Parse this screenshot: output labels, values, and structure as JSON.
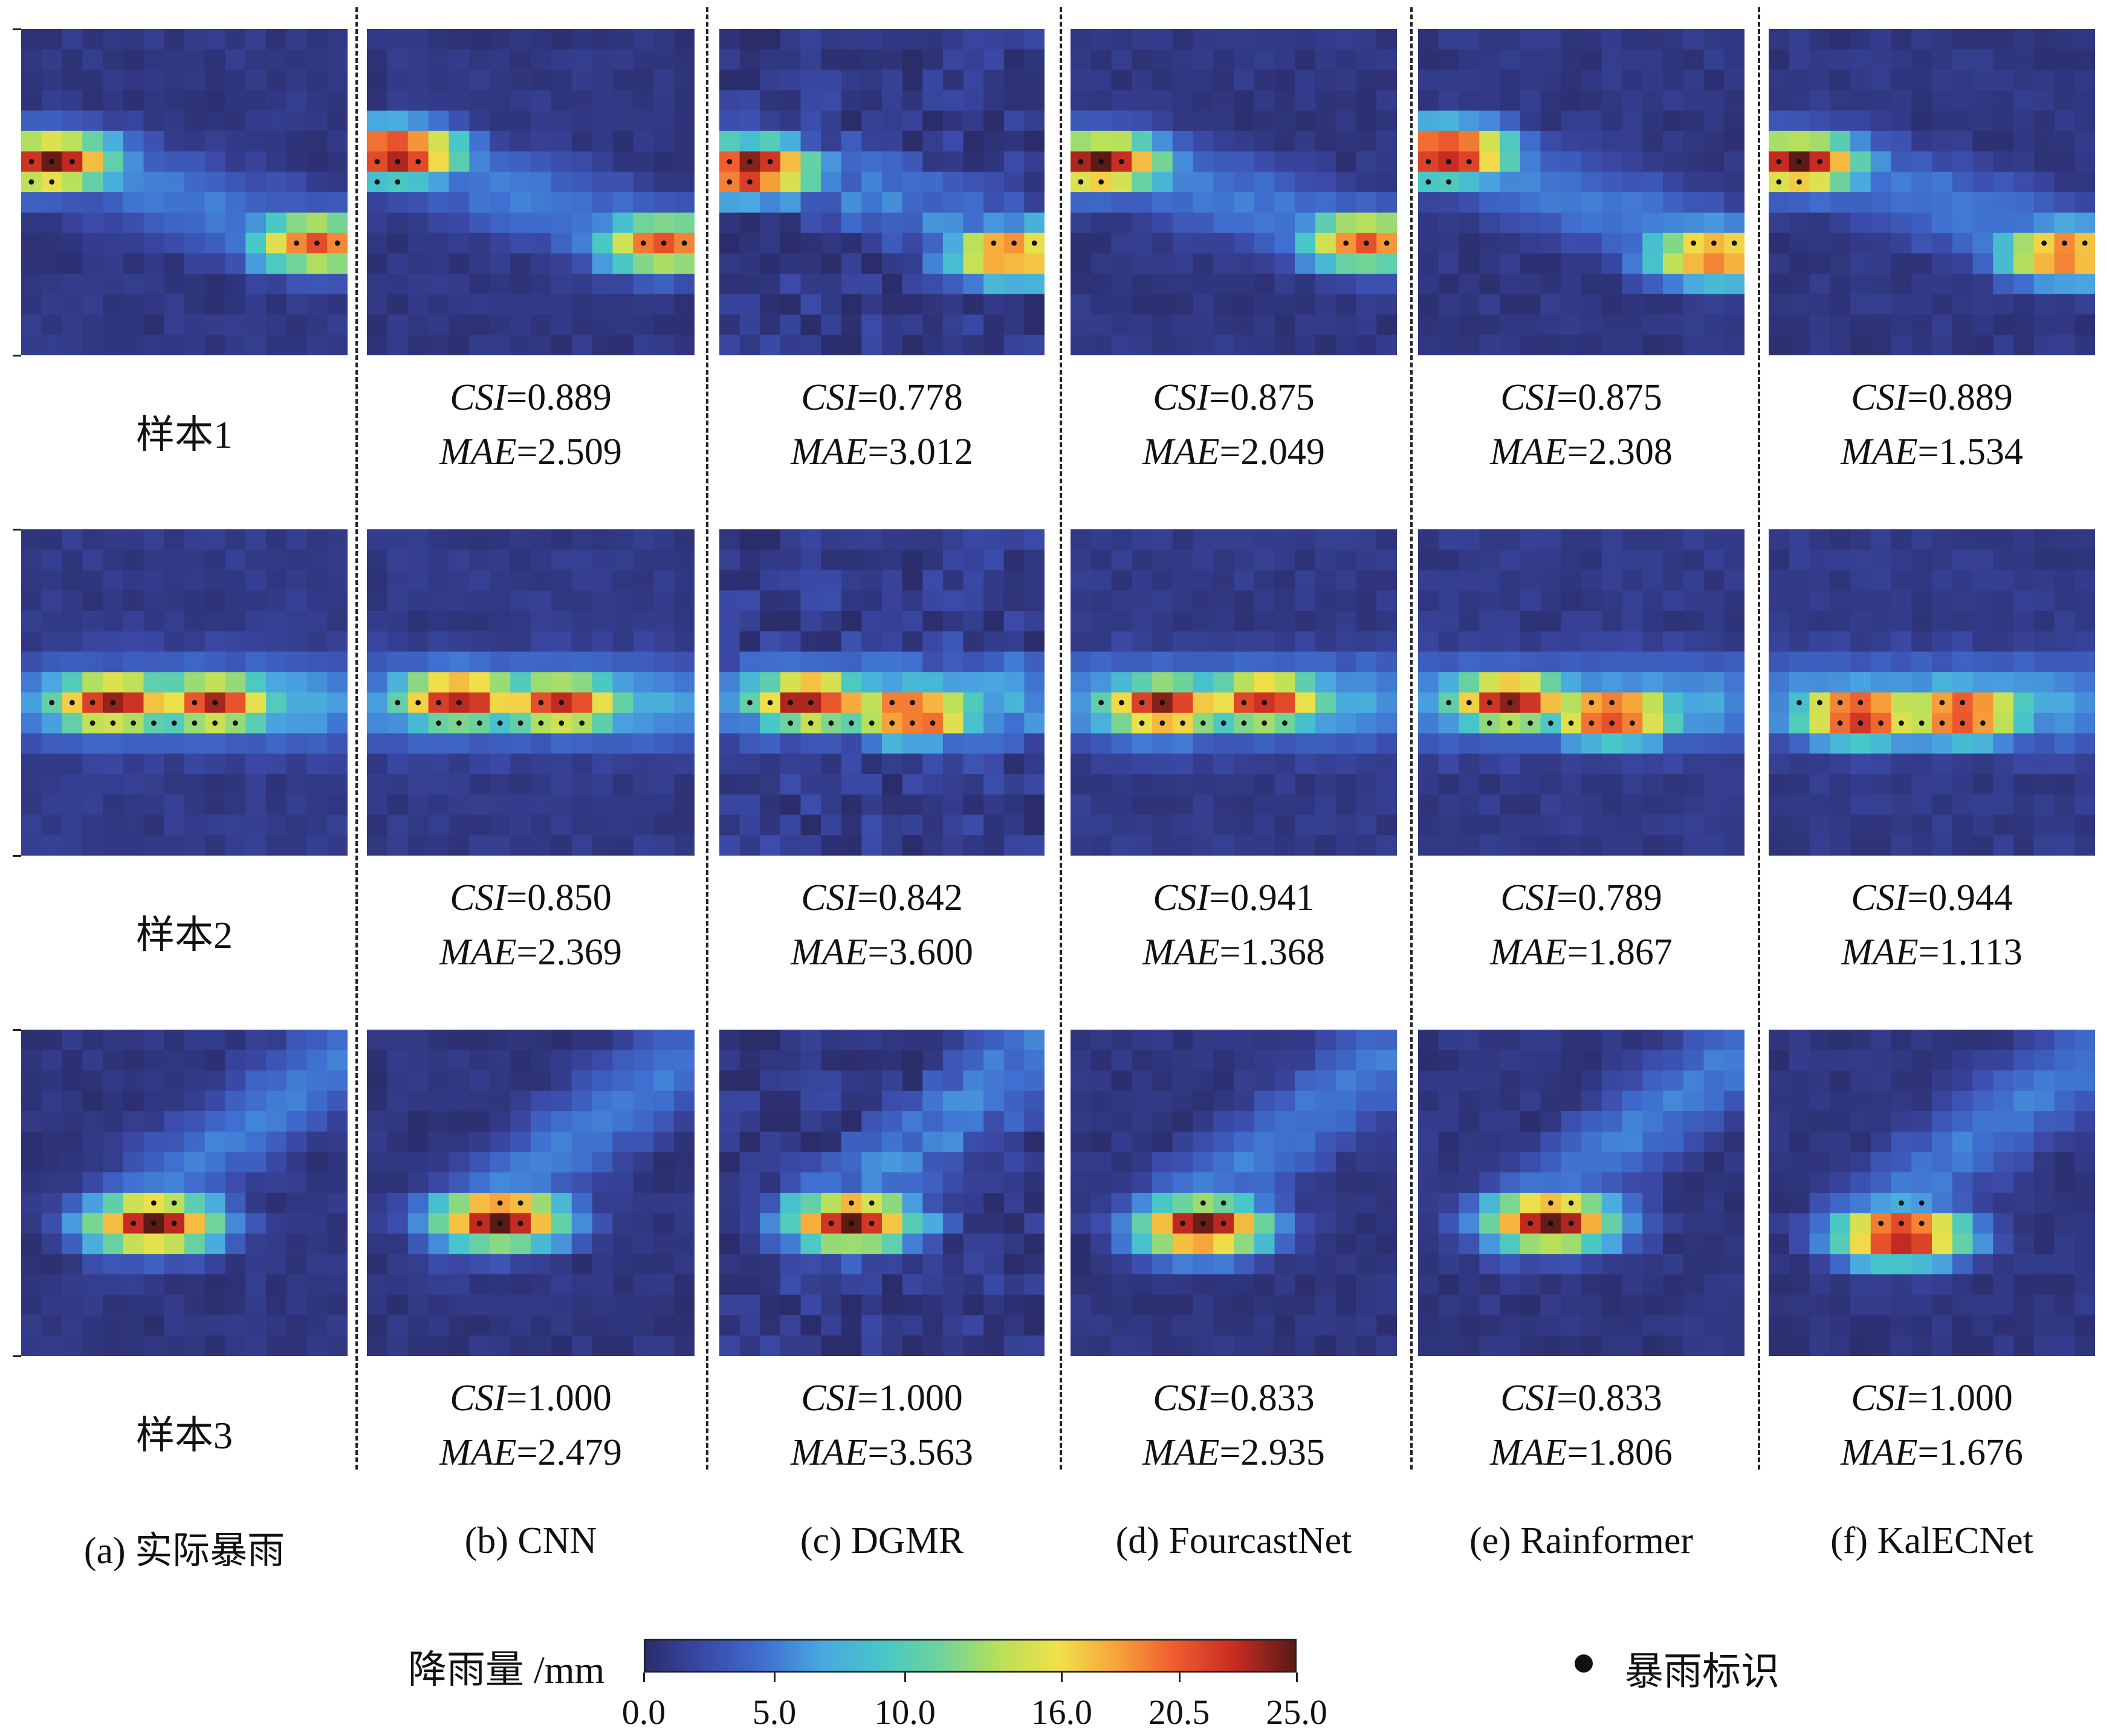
{
  "columns": [
    {
      "key": "truth",
      "label": "(a) 实际暴雨"
    },
    {
      "key": "cnn",
      "label": "(b) CNN"
    },
    {
      "key": "dgmr",
      "label": "(c) DGMR"
    },
    {
      "key": "fourcastnet",
      "label": "(d) FourcastNet"
    },
    {
      "key": "rainformer",
      "label": "(e) Rainformer"
    },
    {
      "key": "kalecnet",
      "label": "(f) KalECNet"
    }
  ],
  "samples": [
    {
      "label": "样本1",
      "metrics": [
        {
          "csi": "0.889",
          "mae": "2.509"
        },
        {
          "csi": "0.778",
          "mae": "3.012"
        },
        {
          "csi": "0.875",
          "mae": "2.049"
        },
        {
          "csi": "0.875",
          "mae": "2.308"
        },
        {
          "csi": "0.889",
          "mae": "1.534"
        }
      ]
    },
    {
      "label": "样本2",
      "metrics": [
        {
          "csi": "0.850",
          "mae": "2.369"
        },
        {
          "csi": "0.842",
          "mae": "3.600"
        },
        {
          "csi": "0.941",
          "mae": "1.368"
        },
        {
          "csi": "0.789",
          "mae": "1.867"
        },
        {
          "csi": "0.944",
          "mae": "1.113"
        }
      ]
    },
    {
      "label": "样本3",
      "metrics": [
        {
          "csi": "1.000",
          "mae": "2.479"
        },
        {
          "csi": "1.000",
          "mae": "3.563"
        },
        {
          "csi": "0.833",
          "mae": "2.935"
        },
        {
          "csi": "0.833",
          "mae": "1.806"
        },
        {
          "csi": "1.000",
          "mae": "1.676"
        }
      ]
    }
  ],
  "metric_names": {
    "csi": "CSI",
    "mae": "MAE"
  },
  "colorbar": {
    "title": "降雨量 /mm",
    "ticks": [
      0.0,
      5.0,
      10.0,
      16.0,
      20.5,
      25.0
    ],
    "tick_labels": [
      "0.0",
      "5.0",
      "10.0",
      "16.0",
      "20.5",
      "25.0"
    ],
    "range": [
      0,
      25
    ],
    "colors": [
      "#2b2d6b",
      "#3b4aa8",
      "#3f6fd0",
      "#4aa8e0",
      "#46c7c8",
      "#6fd39a",
      "#b8e05a",
      "#f0e04a",
      "#f7a33a",
      "#ee5a2e",
      "#c72b22",
      "#5a1a16"
    ]
  },
  "legend": {
    "label": "暴雨标识",
    "marker": "black-dot"
  },
  "chart_data": {
    "type": "heatmap",
    "description_of_grid": "16x16 precipitation fields; black dots mark heavy-rain cells (>= 16 mm)",
    "value_range": [
      0,
      25
    ],
    "heavy_rain_threshold": 16.0,
    "panels": {
      "sample1": {
        "background": 0.8,
        "features": [
          {
            "kind": "blob",
            "r": 6,
            "c": 1,
            "peak": 25,
            "dots": [
              [
                6,
                0
              ],
              [
                6,
                1
              ],
              [
                7,
                0
              ],
              [
                7,
                1
              ],
              [
                6,
                2
              ]
            ]
          },
          {
            "kind": "band",
            "from": [
              6,
              2
            ],
            "to": [
              10,
              14
            ],
            "value": 5
          },
          {
            "kind": "blob",
            "r": 10,
            "c": 14,
            "peak": 21,
            "dots": [
              [
                10,
                13
              ],
              [
                10,
                14
              ],
              [
                10,
                15
              ],
              [
                10,
                16
              ]
            ]
          }
        ]
      },
      "sample2": {
        "background": 1.0,
        "features": [
          {
            "kind": "band",
            "from": [
              8,
              1
            ],
            "to": [
              8,
              14
            ],
            "value": 7
          },
          {
            "kind": "blob",
            "r": 8,
            "c": 4,
            "peak": 24,
            "dots": [
              [
                8,
                1
              ],
              [
                8,
                2
              ],
              [
                8,
                3
              ],
              [
                8,
                4
              ],
              [
                9,
                3
              ],
              [
                9,
                4
              ],
              [
                9,
                5
              ],
              [
                9,
                6
              ],
              [
                9,
                7
              ],
              [
                9,
                8
              ]
            ]
          },
          {
            "kind": "blob",
            "r": 8,
            "c": 9,
            "peak": 23,
            "dots": [
              [
                8,
                8
              ],
              [
                8,
                9
              ],
              [
                9,
                9
              ],
              [
                9,
                10
              ]
            ]
          }
        ]
      },
      "sample3": {
        "background": 0.7,
        "features": [
          {
            "kind": "band",
            "from": [
              9,
              4
            ],
            "to": [
              1,
              15
            ],
            "value": 5
          },
          {
            "kind": "blob",
            "r": 9,
            "c": 6,
            "peak": 25,
            "dots": [
              [
                8,
                6
              ],
              [
                8,
                7
              ],
              [
                9,
                5
              ],
              [
                9,
                6
              ],
              [
                9,
                7
              ]
            ]
          }
        ]
      }
    },
    "metrics": {
      "sample1": {
        "CNN": {
          "CSI": 0.889,
          "MAE": 2.509
        },
        "DGMR": {
          "CSI": 0.778,
          "MAE": 3.012
        },
        "FourcastNet": {
          "CSI": 0.875,
          "MAE": 2.049
        },
        "Rainformer": {
          "CSI": 0.875,
          "MAE": 2.308
        },
        "KalECNet": {
          "CSI": 0.889,
          "MAE": 1.534
        }
      },
      "sample2": {
        "CNN": {
          "CSI": 0.85,
          "MAE": 2.369
        },
        "DGMR": {
          "CSI": 0.842,
          "MAE": 3.6
        },
        "FourcastNet": {
          "CSI": 0.941,
          "MAE": 1.368
        },
        "Rainformer": {
          "CSI": 0.789,
          "MAE": 1.867
        },
        "KalECNet": {
          "CSI": 0.944,
          "MAE": 1.113
        }
      },
      "sample3": {
        "CNN": {
          "CSI": 1.0,
          "MAE": 2.479
        },
        "DGMR": {
          "CSI": 1.0,
          "MAE": 3.563
        },
        "FourcastNet": {
          "CSI": 0.833,
          "MAE": 2.935
        },
        "Rainformer": {
          "CSI": 0.833,
          "MAE": 1.806
        },
        "KalECNet": {
          "CSI": 1.0,
          "MAE": 1.676
        }
      }
    }
  }
}
